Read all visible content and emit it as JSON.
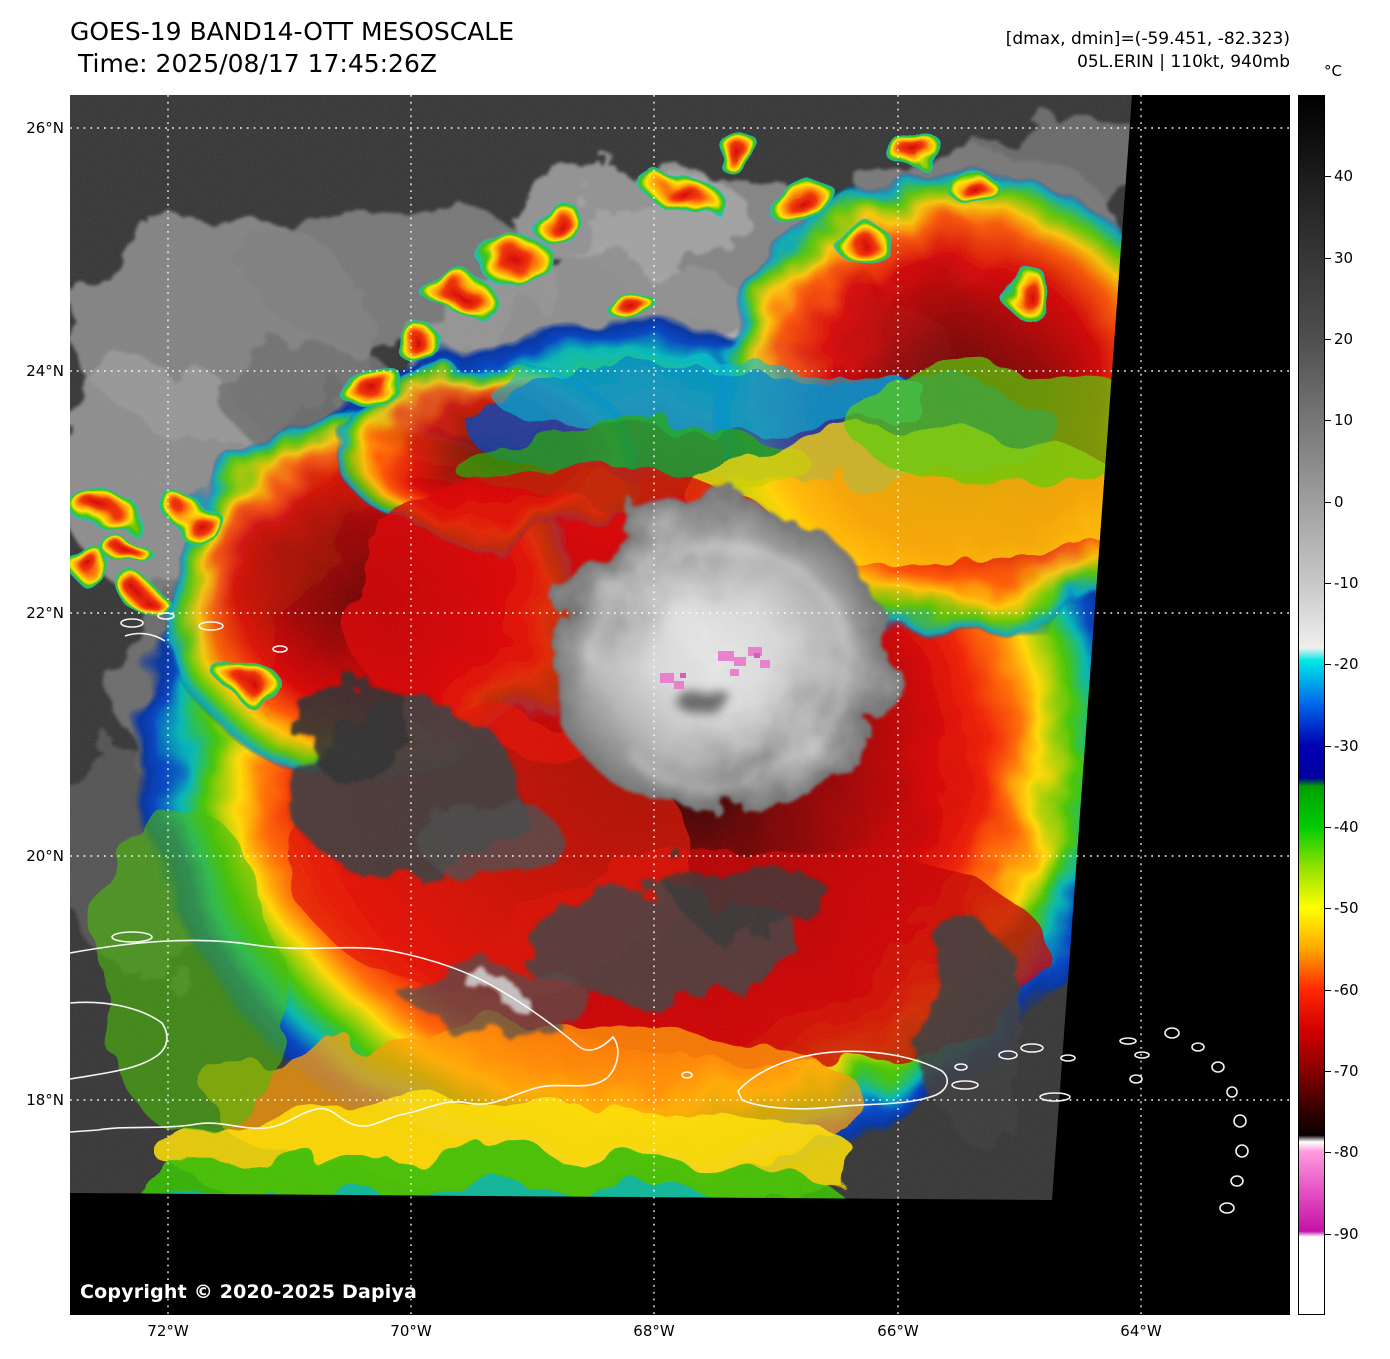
{
  "header": {
    "title": "GOES-19 BAND14-OTT MESOSCALE",
    "time": "Time: 2025/08/17 17:45:26Z",
    "dmax_dmin": "[dmax, dmin]=(-59.451, -82.323)",
    "storm_info": "05L.ERIN | 110kt, 940mb"
  },
  "colorbar": {
    "unit": "°C",
    "max": 50,
    "min": -100,
    "ticks": [
      40,
      30,
      20,
      10,
      0,
      -10,
      -20,
      -30,
      -40,
      -50,
      -60,
      -70,
      -80,
      -90
    ],
    "stops": [
      {
        "t": 50,
        "c": "#000000"
      },
      {
        "t": 35,
        "c": "#2a2a2a"
      },
      {
        "t": 20,
        "c": "#4f4f4f"
      },
      {
        "t": 5,
        "c": "#8a8a8a"
      },
      {
        "t": -10,
        "c": "#c8c8c8"
      },
      {
        "t": -18,
        "c": "#efefef"
      },
      {
        "t": -19.5,
        "c": "#00e8e8"
      },
      {
        "t": -25,
        "c": "#0064e8"
      },
      {
        "t": -30,
        "c": "#0000b4"
      },
      {
        "t": -34,
        "c": "#0000a0"
      },
      {
        "t": -35,
        "c": "#00a000"
      },
      {
        "t": -40,
        "c": "#00cc00"
      },
      {
        "t": -45,
        "c": "#96e000"
      },
      {
        "t": -50,
        "c": "#ffff00"
      },
      {
        "t": -55,
        "c": "#ffa800"
      },
      {
        "t": -60,
        "c": "#ff2800"
      },
      {
        "t": -65,
        "c": "#d40000"
      },
      {
        "t": -70,
        "c": "#8a0000"
      },
      {
        "t": -75,
        "c": "#320000"
      },
      {
        "t": -78,
        "c": "#0a0000"
      },
      {
        "t": -78.8,
        "c": "#ffffff"
      },
      {
        "t": -80,
        "c": "#ff9ade"
      },
      {
        "t": -85,
        "c": "#e44fc4"
      },
      {
        "t": -89.8,
        "c": "#c313a7"
      },
      {
        "t": -90.5,
        "c": "#ffffff"
      },
      {
        "t": -100,
        "c": "#ffffff"
      }
    ]
  },
  "map": {
    "lat_labels": [
      "26°N",
      "24°N",
      "22°N",
      "20°N",
      "18°N"
    ],
    "lon_labels": [
      "72°W",
      "70°W",
      "68°W",
      "66°W",
      "64°W"
    ],
    "copyright": "Copyright © 2020-2025 Dapiya"
  }
}
